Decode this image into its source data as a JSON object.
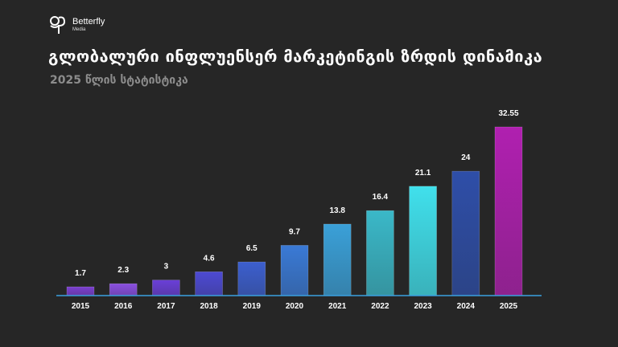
{
  "brand": {
    "name": "Betterfly",
    "sub": "Media"
  },
  "header": {
    "title": "გლობალური ინფლუენსერ მარკეტინგის ზრდის დინამიკა",
    "subtitle": "2025 წლის სტატისტიკა"
  },
  "colors": {
    "background": "#262626",
    "axis": "#3aa0e0",
    "bars": [
      "#7b3fd0",
      "#8a4fe0",
      "#6a3fd8",
      "#4d4ad4",
      "#3c5fcf",
      "#3a7ad6",
      "#3aa0d8",
      "#3ab8c8",
      "#40e0ec",
      "#2e4ea8",
      "#b020b0"
    ]
  },
  "chart_data": {
    "type": "bar",
    "title": "გლობალური ინფლუენსერ მარკეტინგის ზრდის დინამიკა",
    "subtitle": "2025 წლის სტატისტიკა",
    "categories": [
      "2015",
      "2016",
      "2017",
      "2018",
      "2019",
      "2020",
      "2021",
      "2022",
      "2023",
      "2024",
      "2025"
    ],
    "values": [
      1.7,
      2.3,
      3,
      4.6,
      6.5,
      9.7,
      13.8,
      16.4,
      21.1,
      24,
      32.55
    ],
    "value_labels": [
      "1.7",
      "2.3",
      "3",
      "4.6",
      "6.5",
      "9.7",
      "13.8",
      "16.4",
      "21.1",
      "24",
      "32.55"
    ],
    "xlabel": "",
    "ylabel": "",
    "ylim": [
      0,
      32.55
    ],
    "grid": false,
    "legend": "none"
  }
}
